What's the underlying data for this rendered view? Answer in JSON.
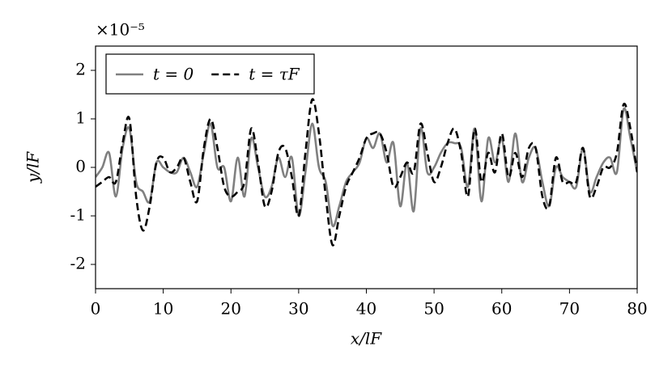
{
  "chart_data": {
    "type": "line",
    "offset_text": "×10⁻⁵",
    "xlabel": "x/lF",
    "ylabel": "y/lF",
    "x": [
      0,
      1,
      2,
      3,
      4,
      5,
      6,
      7,
      8,
      9,
      10,
      11,
      12,
      13,
      14,
      15,
      16,
      17,
      18,
      19,
      20,
      21,
      22,
      23,
      24,
      25,
      26,
      27,
      28,
      29,
      30,
      31,
      32,
      33,
      34,
      35,
      36,
      37,
      38,
      39,
      40,
      41,
      42,
      43,
      44,
      45,
      46,
      47,
      48,
      49,
      50,
      51,
      52,
      53,
      54,
      55,
      56,
      57,
      58,
      59,
      60,
      61,
      62,
      63,
      64,
      65,
      66,
      67,
      68,
      69,
      70,
      71,
      72,
      73,
      74,
      75,
      76,
      77,
      78,
      79,
      80
    ],
    "series": [
      {
        "name": "t = 0",
        "color": "#808080",
        "dash": false,
        "values": [
          -0.2,
          0.0,
          0.3,
          -0.6,
          0.4,
          0.8,
          -0.3,
          -0.5,
          -0.7,
          0.1,
          0.0,
          -0.1,
          -0.1,
          0.2,
          -0.1,
          -0.4,
          0.3,
          0.9,
          0.0,
          0.0,
          -0.7,
          0.2,
          -0.6,
          0.6,
          0.0,
          -0.6,
          -0.4,
          0.2,
          -0.2,
          0.2,
          -1.0,
          -0.1,
          0.9,
          0.0,
          -0.3,
          -1.2,
          -0.8,
          -0.3,
          -0.1,
          0.1,
          0.6,
          0.4,
          0.7,
          0.1,
          0.5,
          -0.8,
          0.1,
          -0.9,
          0.8,
          -0.1,
          0.0,
          0.3,
          0.5,
          0.5,
          0.4,
          -0.4,
          0.8,
          -0.7,
          0.6,
          0.1,
          0.6,
          -0.3,
          0.7,
          -0.3,
          0.2,
          0.4,
          -0.3,
          -0.8,
          0.0,
          -0.2,
          -0.3,
          -0.4,
          0.4,
          -0.5,
          -0.2,
          0.1,
          0.2,
          -0.1,
          1.2,
          0.6,
          -0.1
        ]
      },
      {
        "name": "t = τF",
        "color": "#000000",
        "dash": true,
        "values": [
          -0.4,
          -0.3,
          -0.2,
          -0.3,
          0.5,
          1.0,
          -0.6,
          -1.3,
          -0.8,
          0.1,
          0.2,
          -0.1,
          0.0,
          0.2,
          -0.3,
          -0.7,
          0.4,
          1.0,
          0.4,
          -0.4,
          -0.6,
          -0.5,
          -0.3,
          0.8,
          0.1,
          -0.8,
          -0.5,
          0.3,
          0.4,
          -0.2,
          -1.0,
          0.3,
          1.4,
          0.7,
          -0.6,
          -1.6,
          -1.0,
          -0.4,
          -0.1,
          0.2,
          0.6,
          0.7,
          0.7,
          0.3,
          -0.4,
          -0.2,
          0.1,
          -0.1,
          0.9,
          0.3,
          -0.3,
          0.0,
          0.5,
          0.8,
          0.3,
          -0.6,
          0.8,
          -0.3,
          0.3,
          -0.1,
          0.7,
          -0.2,
          0.3,
          -0.2,
          0.4,
          0.4,
          -0.6,
          -0.8,
          0.2,
          -0.3,
          -0.3,
          -0.3,
          0.4,
          -0.6,
          -0.4,
          0.0,
          0.0,
          0.3,
          1.3,
          0.8,
          -0.1
        ]
      }
    ],
    "xlim": [
      0,
      80
    ],
    "xticks": [
      0,
      10,
      20,
      30,
      40,
      50,
      60,
      70,
      80
    ],
    "ylim": [
      -2.5,
      2.5
    ],
    "yticks": [
      -2,
      -1,
      0,
      1,
      2
    ],
    "grid": false,
    "legend": "upper left"
  }
}
